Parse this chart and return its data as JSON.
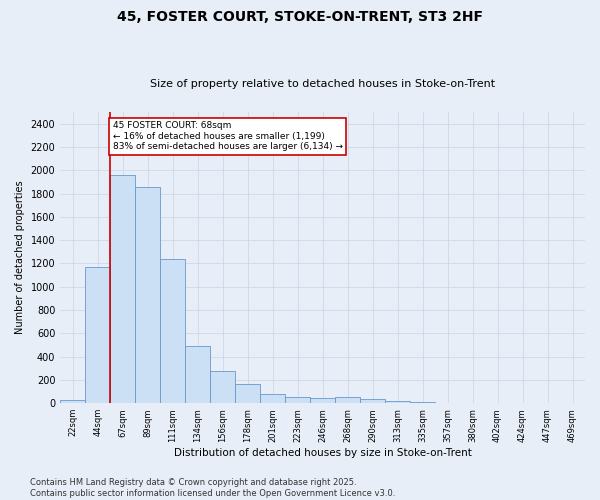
{
  "title1": "45, FOSTER COURT, STOKE-ON-TRENT, ST3 2HF",
  "title2": "Size of property relative to detached houses in Stoke-on-Trent",
  "xlabel": "Distribution of detached houses by size in Stoke-on-Trent",
  "ylabel": "Number of detached properties",
  "categories": [
    "22sqm",
    "44sqm",
    "67sqm",
    "89sqm",
    "111sqm",
    "134sqm",
    "156sqm",
    "178sqm",
    "201sqm",
    "223sqm",
    "246sqm",
    "268sqm",
    "290sqm",
    "313sqm",
    "335sqm",
    "357sqm",
    "380sqm",
    "402sqm",
    "424sqm",
    "447sqm",
    "469sqm"
  ],
  "values": [
    25,
    1170,
    1960,
    1860,
    1240,
    490,
    280,
    165,
    75,
    55,
    45,
    55,
    35,
    15,
    10,
    5,
    2,
    1,
    0,
    0,
    0
  ],
  "bar_color": "#cce0f5",
  "bar_edge_color": "#6699cc",
  "annotation_text": "45 FOSTER COURT: 68sqm\n← 16% of detached houses are smaller (1,199)\n83% of semi-detached houses are larger (6,134) →",
  "annotation_box_color": "#ffffff",
  "annotation_box_edge": "#cc0000",
  "annotation_text_size": 6.5,
  "highlight_color": "#cc0000",
  "ylim": [
    0,
    2500
  ],
  "yticks": [
    0,
    200,
    400,
    600,
    800,
    1000,
    1200,
    1400,
    1600,
    1800,
    2000,
    2200,
    2400
  ],
  "grid_color": "#c8d4e8",
  "background_color": "#e8eef8",
  "footer1": "Contains HM Land Registry data © Crown copyright and database right 2025.",
  "footer2": "Contains public sector information licensed under the Open Government Licence v3.0.",
  "title1_fontsize": 10,
  "title2_fontsize": 8,
  "xlabel_fontsize": 7.5,
  "ylabel_fontsize": 7,
  "footer_fontsize": 6,
  "xtick_fontsize": 6,
  "ytick_fontsize": 7
}
